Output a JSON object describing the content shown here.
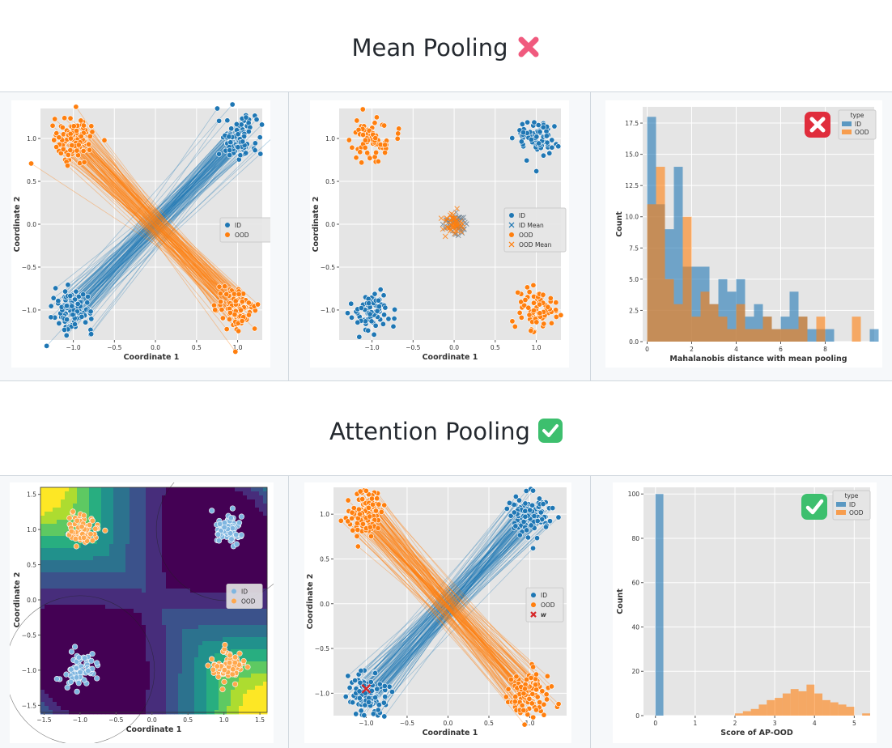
{
  "sections": [
    {
      "title": "Mean Pooling",
      "status_icon": "cross-mark-icon",
      "icon_color": "#f05a7e"
    },
    {
      "title": "Attention Pooling",
      "status_icon": "check-mark-icon",
      "icon_color": "#3dbf6e"
    }
  ],
  "colors": {
    "id": "#1f77b4",
    "ood": "#ff7f0e",
    "plot_bg": "#e5e5e5",
    "w_marker": "#d62728"
  },
  "chart_data": [
    {
      "type": "scatter",
      "name": "mean-pooling-trajectories",
      "xlabel": "Coordinate 1",
      "ylabel": "Coordinate 2",
      "xlim": [
        -1.4,
        1.3
      ],
      "ylim": [
        -1.35,
        1.35
      ],
      "xticks": [
        -1.0,
        -0.5,
        0.0,
        0.5,
        1.0
      ],
      "yticks": [
        -1.0,
        -0.5,
        0.0,
        0.5,
        1.0
      ],
      "xtick_labels": [
        "−1.0",
        "−0.5",
        "0.0",
        "0.5",
        "1.0"
      ],
      "ytick_labels": [
        "−1.0",
        "−0.5",
        "0.0",
        "0.5",
        "1.0"
      ],
      "grid": true,
      "legend": {
        "placement": "center-right",
        "entries": [
          "ID",
          "OOD"
        ]
      },
      "clusters": [
        {
          "series": "ID",
          "center": [
            1.0,
            1.0
          ],
          "spread": 0.12
        },
        {
          "series": "ID",
          "center": [
            -1.0,
            -1.0
          ],
          "spread": 0.12
        },
        {
          "series": "OOD",
          "center": [
            -1.0,
            1.0
          ],
          "spread": 0.12
        },
        {
          "series": "OOD",
          "center": [
            1.0,
            -1.0
          ],
          "spread": 0.12
        }
      ],
      "lines": "each ID point in the upper-right cluster is paired with one in the lower-left cluster; each OOD point in the upper-left cluster with one in the lower-right cluster"
    },
    {
      "type": "scatter",
      "name": "mean-pooling-means",
      "xlabel": "Coordinate 1",
      "ylabel": "Coordinate 2",
      "xlim": [
        -1.4,
        1.3
      ],
      "ylim": [
        -1.35,
        1.35
      ],
      "xticks": [
        -1.0,
        -0.5,
        0.0,
        0.5,
        1.0
      ],
      "yticks": [
        -1.0,
        -0.5,
        0.0,
        0.5,
        1.0
      ],
      "xtick_labels": [
        "−1.0",
        "−0.5",
        "0.0",
        "0.5",
        "1.0"
      ],
      "ytick_labels": [
        "−1.0",
        "−0.5",
        "0.0",
        "0.5",
        "1.0"
      ],
      "grid": true,
      "legend": {
        "placement": "center-right",
        "entries": [
          "ID",
          "ID Mean",
          "OOD",
          "OOD Mean"
        ]
      },
      "clusters": [
        {
          "series": "ID",
          "center": [
            1.0,
            1.0
          ],
          "spread": 0.12
        },
        {
          "series": "ID",
          "center": [
            -1.0,
            -1.0
          ],
          "spread": 0.12
        },
        {
          "series": "OOD",
          "center": [
            -1.0,
            1.0
          ],
          "spread": 0.12
        },
        {
          "series": "OOD",
          "center": [
            1.0,
            -1.0
          ],
          "spread": 0.12
        },
        {
          "series": "ID Mean",
          "center": [
            0.0,
            0.0
          ],
          "spread": 0.07
        },
        {
          "series": "OOD Mean",
          "center": [
            0.0,
            0.0
          ],
          "spread": 0.07
        }
      ]
    },
    {
      "type": "bar",
      "name": "mahalanobis-histogram",
      "xlabel": "Mahalanobis distance with mean pooling",
      "ylabel": "Count",
      "xlim": [
        -0.2,
        10.2
      ],
      "ylim": [
        0,
        18.8
      ],
      "xticks": [
        0,
        2,
        4,
        6,
        8
      ],
      "yticks": [
        0.0,
        2.5,
        5.0,
        7.5,
        10.0,
        12.5,
        15.0,
        17.5
      ],
      "ytick_labels": [
        "0.0",
        "2.5",
        "5.0",
        "7.5",
        "10.0",
        "12.5",
        "15.0",
        "17.5"
      ],
      "grid": true,
      "legend": {
        "title": "type",
        "placement": "top-right",
        "entries": [
          "ID",
          "OOD"
        ]
      },
      "bin_width": 0.4,
      "bin_start": 0.0,
      "series": [
        {
          "name": "ID",
          "values": [
            18,
            11,
            9,
            14,
            6,
            6,
            6,
            3,
            5,
            4,
            5,
            2,
            3,
            2,
            1,
            2,
            4,
            2,
            1,
            1,
            1,
            0,
            0,
            0,
            0,
            1
          ]
        },
        {
          "name": "OOD",
          "values": [
            11,
            14,
            5,
            3,
            10,
            2,
            4,
            3,
            2,
            1,
            3,
            1,
            1,
            2,
            1,
            1,
            1,
            2,
            0,
            2,
            0,
            0,
            0,
            2,
            0,
            0
          ]
        }
      ]
    },
    {
      "type": "scatter",
      "name": "attention-contour",
      "xlabel": "Coordinate 1",
      "ylabel": "Coordinate 2",
      "xlim": [
        -1.55,
        1.6
      ],
      "ylim": [
        -1.6,
        1.6
      ],
      "xticks": [
        -1.5,
        -1.0,
        -0.5,
        0.0,
        0.5,
        1.0,
        1.5
      ],
      "yticks": [
        -1.5,
        -1.0,
        -0.5,
        0.0,
        0.5,
        1.0,
        1.5
      ],
      "xtick_labels": [
        "−1.5",
        "−1.0",
        "−0.5",
        "0.0",
        "0.5",
        "1.0",
        "1.5"
      ],
      "ytick_labels": [
        "−1.5",
        "−1.0",
        "−0.5",
        "0.0",
        "0.5",
        "1.0",
        "1.5"
      ],
      "grid": false,
      "legend": {
        "placement": "center-right",
        "entries": [
          "ID",
          "OOD"
        ]
      },
      "background": "filled contour (viridis)",
      "clusters": [
        {
          "series": "ID",
          "center": [
            1.05,
            1.0
          ],
          "spread": 0.11
        },
        {
          "series": "ID",
          "center": [
            -1.0,
            -1.0
          ],
          "spread": 0.11
        },
        {
          "series": "OOD",
          "center": [
            -0.95,
            1.0
          ],
          "spread": 0.11
        },
        {
          "series": "OOD",
          "center": [
            1.05,
            -0.95
          ],
          "spread": 0.11
        }
      ]
    },
    {
      "type": "scatter",
      "name": "attention-trajectories",
      "xlabel": "Coordinate 1",
      "ylabel": "Coordinate 2",
      "xlim": [
        -1.4,
        1.45
      ],
      "ylim": [
        -1.25,
        1.3
      ],
      "xticks": [
        -1.0,
        -0.5,
        0.0,
        0.5,
        1.0
      ],
      "yticks": [
        -1.0,
        -0.5,
        0.0,
        0.5,
        1.0
      ],
      "xtick_labels": [
        "−1.0",
        "−0.5",
        "0.0",
        "0.5",
        "1.0"
      ],
      "ytick_labels": [
        "−1.0",
        "−0.5",
        "0.0",
        "0.5",
        "1.0"
      ],
      "grid": true,
      "legend": {
        "placement": "center-right",
        "entries": [
          "ID",
          "OOD",
          "w"
        ]
      },
      "w_marker": [
        -1.0,
        -0.95
      ],
      "clusters": [
        {
          "series": "ID",
          "center": [
            1.0,
            1.0
          ],
          "spread": 0.12
        },
        {
          "series": "ID",
          "center": [
            -1.0,
            -1.0
          ],
          "spread": 0.12
        },
        {
          "series": "OOD",
          "center": [
            -1.0,
            1.0
          ],
          "spread": 0.12
        },
        {
          "series": "OOD",
          "center": [
            1.0,
            -1.0
          ],
          "spread": 0.12
        }
      ]
    },
    {
      "type": "bar",
      "name": "ap-ood-histogram",
      "xlabel": "Score of AP-OOD",
      "ylabel": "Count",
      "xlim": [
        -0.3,
        5.4
      ],
      "ylim": [
        0,
        103
      ],
      "xticks": [
        0,
        1,
        2,
        3,
        4,
        5
      ],
      "yticks": [
        0,
        20,
        40,
        60,
        80,
        100
      ],
      "grid": true,
      "legend": {
        "title": "type",
        "placement": "top-right",
        "entries": [
          "ID",
          "OOD"
        ]
      },
      "bin_width": 0.2,
      "bin_start": 0.0,
      "series": [
        {
          "name": "ID",
          "values": [
            100
          ]
        },
        {
          "name": "OOD",
          "bin_start": 2.0,
          "values": [
            1,
            2,
            3,
            5,
            7,
            8,
            10,
            12,
            11,
            14,
            10,
            7,
            6,
            5,
            4,
            0,
            1,
            0,
            0,
            0,
            0,
            1
          ]
        }
      ]
    }
  ]
}
